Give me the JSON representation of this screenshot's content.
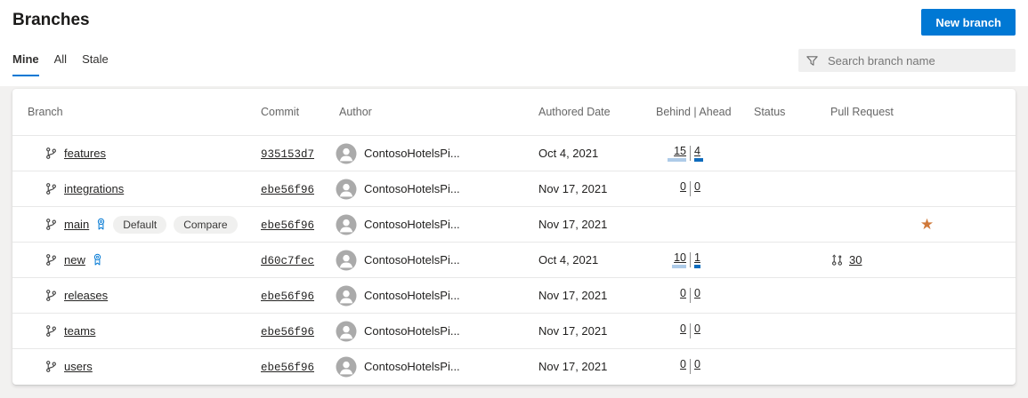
{
  "page": {
    "title": "Branches"
  },
  "toolbar": {
    "new_branch_label": "New branch"
  },
  "tabs": {
    "items": [
      {
        "label": "Mine",
        "active": true
      },
      {
        "label": "All",
        "active": false
      },
      {
        "label": "Stale",
        "active": false
      }
    ]
  },
  "search": {
    "placeholder": "Search branch name",
    "icon": "filter-funnel"
  },
  "table": {
    "columns": [
      "Branch",
      "Commit",
      "Author",
      "Authored Date",
      "Behind | Ahead",
      "Status",
      "Pull Request"
    ],
    "rows": [
      {
        "name": "features",
        "policy": false,
        "badges": [],
        "commit": "935153d7",
        "author": "ContosoHotelsPi...",
        "date": "Oct 4, 2021",
        "show_counts": true,
        "behind": 15,
        "ahead": 4,
        "pr": null,
        "favorite": false
      },
      {
        "name": "integrations",
        "policy": false,
        "badges": [],
        "commit": "ebe56f96",
        "author": "ContosoHotelsPi...",
        "date": "Nov 17, 2021",
        "show_counts": true,
        "behind": 0,
        "ahead": 0,
        "pr": null,
        "favorite": false
      },
      {
        "name": "main",
        "policy": true,
        "badges": [
          "Default",
          "Compare"
        ],
        "commit": "ebe56f96",
        "author": "ContosoHotelsPi...",
        "date": "Nov 17, 2021",
        "show_counts": false,
        "behind": null,
        "ahead": null,
        "pr": null,
        "favorite": true
      },
      {
        "name": "new",
        "policy": true,
        "badges": [],
        "commit": "d60c7fec",
        "author": "ContosoHotelsPi...",
        "date": "Oct 4, 2021",
        "show_counts": true,
        "behind": 10,
        "ahead": 1,
        "pr": "30",
        "favorite": false
      },
      {
        "name": "releases",
        "policy": false,
        "badges": [],
        "commit": "ebe56f96",
        "author": "ContosoHotelsPi...",
        "date": "Nov 17, 2021",
        "show_counts": true,
        "behind": 0,
        "ahead": 0,
        "pr": null,
        "favorite": false
      },
      {
        "name": "teams",
        "policy": false,
        "badges": [],
        "commit": "ebe56f96",
        "author": "ContosoHotelsPi...",
        "date": "Nov 17, 2021",
        "show_counts": true,
        "behind": 0,
        "ahead": 0,
        "pr": null,
        "favorite": false
      },
      {
        "name": "users",
        "policy": false,
        "badges": [],
        "commit": "ebe56f96",
        "author": "ContosoHotelsPi...",
        "date": "Nov 17, 2021",
        "show_counts": true,
        "behind": 0,
        "ahead": 0,
        "pr": null,
        "favorite": false
      }
    ]
  },
  "colors": {
    "accent": "#0078d4",
    "behind_bar": "#aecbe8",
    "ahead_bar": "#0f6cbd",
    "favorite_star": "#d0793a",
    "button_text": "#ffffff"
  }
}
